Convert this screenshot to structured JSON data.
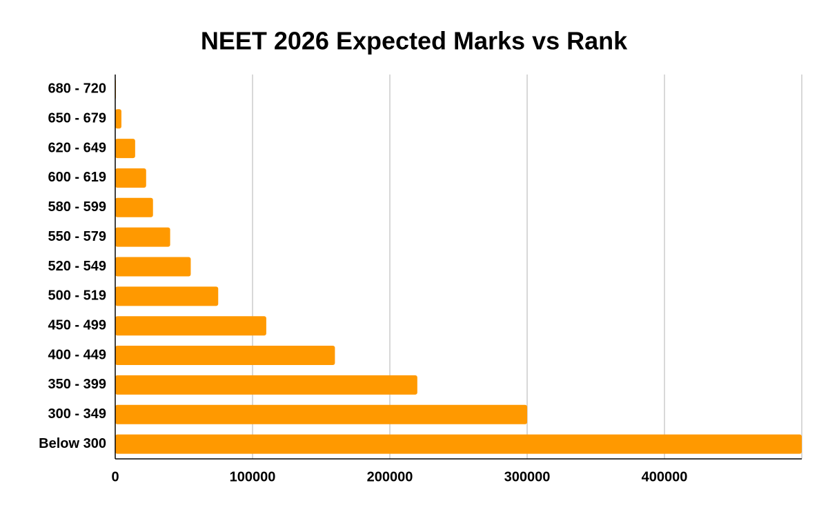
{
  "chart_data": {
    "type": "bar",
    "orientation": "horizontal",
    "title": "NEET 2026 Expected Marks vs Rank",
    "categories": [
      "680 - 720",
      "650 - 679",
      "620 - 649",
      "600 - 619",
      "580 - 599",
      "550 - 579",
      "520 - 549",
      "500 - 519",
      "450 - 499",
      "400 - 449",
      "350 - 399",
      "300 - 349",
      "Below 300"
    ],
    "values": [
      500,
      4500,
      14500,
      22500,
      27500,
      40000,
      55000,
      75000,
      110000,
      160000,
      220000,
      300000,
      500000
    ],
    "color": "#ff9900",
    "xlim": [
      0,
      500000
    ],
    "xticks": [
      0,
      100000,
      200000,
      300000,
      400000
    ],
    "grid": true
  }
}
